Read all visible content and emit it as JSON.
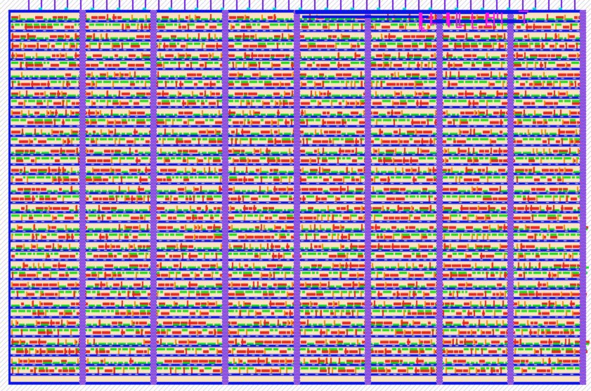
{
  "layout_view": {
    "colors": {
      "background": "#ffffff",
      "hatch": "#c8c8d0",
      "metal1": "#0a14e6",
      "metal2": "#6a1ee0",
      "strap_check": "#ffffff",
      "poly": "#e6281e",
      "diffusion": "#10e010",
      "well": "#fbe3c0",
      "via": "#ff10e0",
      "contact": "#00e0e0",
      "orange": "#f08c10"
    }
  }
}
